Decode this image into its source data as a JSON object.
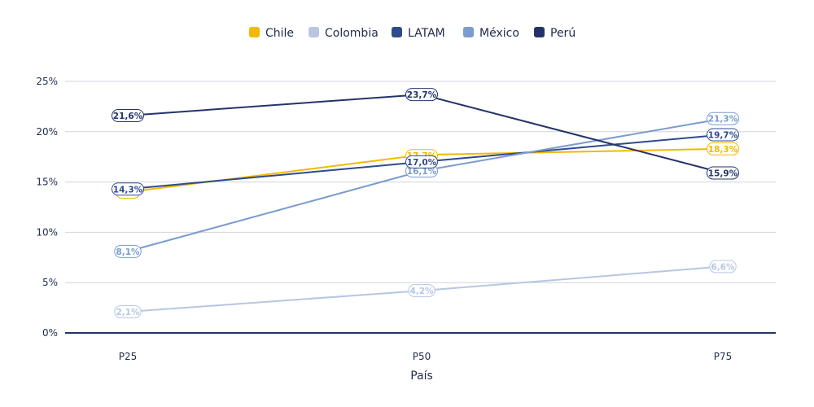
{
  "chart_data": {
    "type": "line",
    "xlabel": "País",
    "ylabel": "",
    "categories": [
      "P25",
      "P50",
      "P75"
    ],
    "ylim": [
      0,
      25
    ],
    "yticks": [
      0,
      5,
      10,
      15,
      20,
      25
    ],
    "ytick_labels": [
      "0%",
      "5%",
      "10%",
      "15%",
      "20%",
      "25%"
    ],
    "grid": true,
    "legend_position": "top-center",
    "series": [
      {
        "name": "Chile",
        "color": "#f5b800",
        "values": [
          14.0,
          17.7,
          18.3
        ],
        "labels": [
          "14%",
          "17,7%",
          "18,3%"
        ]
      },
      {
        "name": "Colombia",
        "color": "#b8c6e3",
        "values": [
          2.1,
          4.2,
          6.6
        ],
        "labels": [
          "2,1%",
          "4,2%",
          "6,6%"
        ]
      },
      {
        "name": "LATAM",
        "color": "#2e4a8e",
        "values": [
          14.3,
          17.0,
          19.7
        ],
        "labels": [
          "14,3%",
          "17,0%",
          "19,7%"
        ]
      },
      {
        "name": "México",
        "color": "#7a9ccf",
        "values": [
          8.1,
          16.1,
          21.3
        ],
        "labels": [
          "8,1%",
          "16,1%",
          "21,3%"
        ]
      },
      {
        "name": "Perú",
        "color": "#23336a",
        "values": [
          21.6,
          23.7,
          15.9
        ],
        "labels": [
          "21,6%",
          "23,7%",
          "15,9%"
        ]
      }
    ]
  }
}
